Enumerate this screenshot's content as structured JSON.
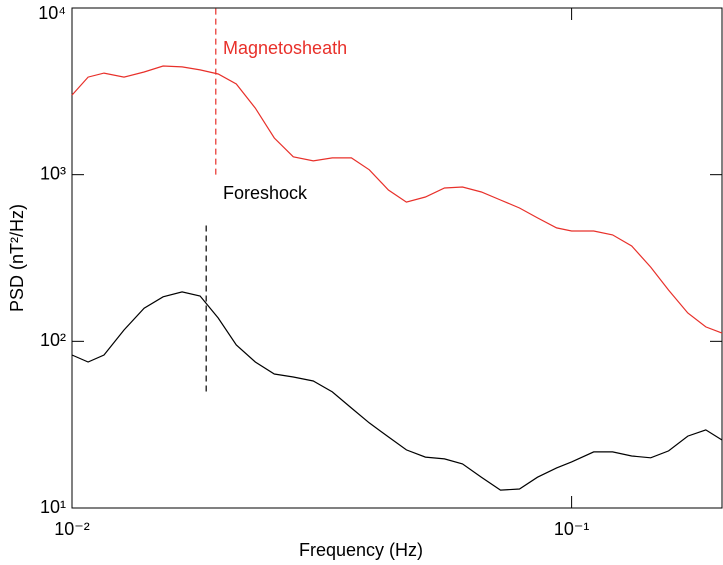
{
  "chart_data": {
    "type": "line",
    "xlabel": "Frequency (Hz)",
    "ylabel": "PSD (nT²/Hz)",
    "xlog": true,
    "ylog": true,
    "xlim": [
      0.01,
      0.2
    ],
    "ylim": [
      10,
      10000
    ],
    "xticks": [
      {
        "value": 0.01,
        "label": "10⁻²"
      },
      {
        "value": 0.1,
        "label": "10⁻¹"
      }
    ],
    "yticks": [
      {
        "value": 10,
        "label": "10¹"
      },
      {
        "value": 100,
        "label": "10²"
      },
      {
        "value": 1000,
        "label": "10³"
      },
      {
        "value": 10000,
        "label": "10⁴"
      }
    ],
    "x": [
      0.01,
      0.01077,
      0.01159,
      0.01271,
      0.01394,
      0.01522,
      0.01661,
      0.01805,
      0.01962,
      0.02132,
      0.02327,
      0.0254,
      0.02773,
      0.03041,
      0.03319,
      0.03624,
      0.03937,
      0.04298,
      0.0467,
      0.05098,
      0.05566,
      0.06047,
      0.066,
      0.07206,
      0.07867,
      0.08547,
      0.09331,
      0.1,
      0.1107,
      0.1208,
      0.1319,
      0.144,
      0.1564,
      0.1708,
      0.1856,
      0.2
    ],
    "series": [
      {
        "name": "Magnetosheath",
        "color": "#e8302a",
        "values": [
          3000,
          3850,
          4070,
          3850,
          4130,
          4490,
          4430,
          4250,
          4020,
          3500,
          2510,
          1660,
          1280,
          1210,
          1260,
          1260,
          1070,
          809,
          685,
          735,
          832,
          843,
          787,
          705,
          631,
          550,
          479,
          459,
          459,
          435,
          373,
          279,
          203,
          148,
          122,
          112
        ]
      },
      {
        "name": "Foreshock",
        "color": "#000000",
        "values": [
          82.8,
          75.2,
          82.8,
          117,
          158,
          185,
          198,
          187,
          138,
          95.1,
          75.2,
          63.7,
          61.1,
          57.8,
          49.7,
          39.8,
          32.4,
          26.7,
          22.3,
          20.2,
          19.7,
          18.4,
          15.3,
          12.8,
          13.0,
          15.3,
          17.4,
          18.9,
          21.7,
          21.7,
          20.5,
          20.0,
          22.0,
          27.0,
          29.4,
          25.6
        ]
      }
    ],
    "markers": [
      {
        "x": 0.0194,
        "y": [
          1000,
          10000
        ],
        "color": "#e8302a"
      },
      {
        "x": 0.01856,
        "y": [
          50,
          500
        ],
        "color": "#000000"
      }
    ]
  }
}
